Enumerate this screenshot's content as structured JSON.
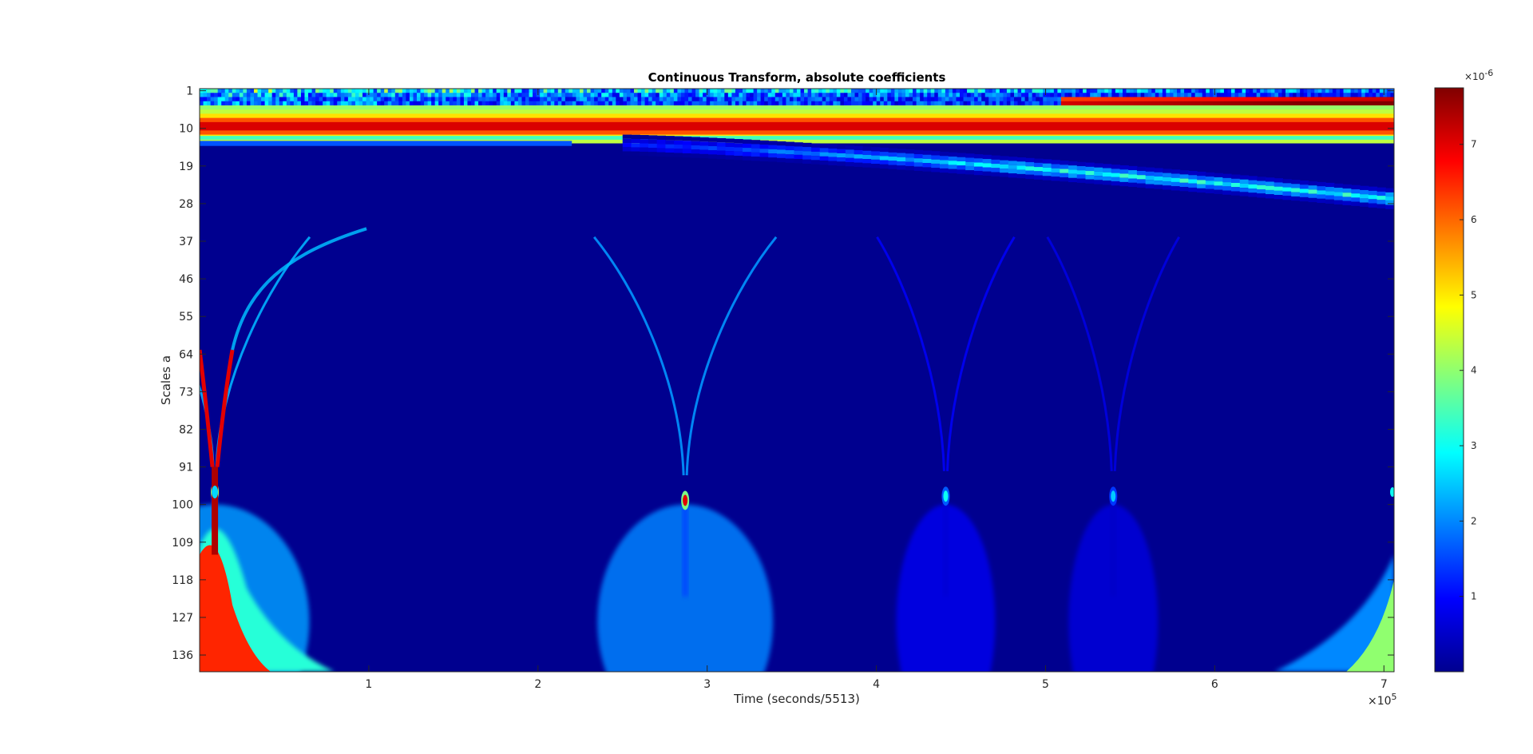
{
  "chart_data": {
    "type": "heatmap",
    "title": "Continuous Transform, absolute coefficients",
    "xlabel": "Time (seconds/5513)",
    "ylabel": "Scales a",
    "x_ticks": [
      1,
      2,
      3,
      4,
      5,
      6,
      7
    ],
    "x_tick_labels": [
      "1",
      "2",
      "3",
      "4",
      "5",
      "6",
      "7"
    ],
    "x_multiplier": "×10",
    "x_multiplier_exp": "5",
    "xlim": [
      0,
      7.06
    ],
    "y_ticks": [
      1,
      10,
      19,
      28,
      37,
      46,
      55,
      64,
      73,
      82,
      91,
      100,
      109,
      118,
      127,
      136
    ],
    "y_tick_labels": [
      "1",
      "10",
      "19",
      "28",
      "37",
      "46",
      "55",
      "64",
      "73",
      "82",
      "91",
      "100",
      "109",
      "118",
      "127",
      "136"
    ],
    "ylim": [
      0.5,
      140
    ],
    "y_reversed": true,
    "colormap": "jet",
    "colorbar": {
      "ticks": [
        1,
        2,
        3,
        4,
        5,
        6,
        7
      ],
      "tick_labels": [
        "1",
        "2",
        "3",
        "4",
        "5",
        "6",
        "7"
      ],
      "clim": [
        0,
        7.75
      ],
      "multiplier": "×10",
      "multiplier_exp": "-6"
    },
    "features": [
      {
        "kind": "band",
        "scale_from": 1,
        "scale_to": 5,
        "t_from": 0,
        "t_to": 7.06,
        "value_start": 3.0,
        "value_end": 1.6
      },
      {
        "kind": "band",
        "scale_from": 5,
        "scale_to": 13,
        "t_from": 0,
        "t_to": 7.06,
        "value_start": 7.2,
        "value_end": 7.2
      },
      {
        "kind": "ridge",
        "scale_start": 14,
        "scale_end": 27,
        "t_from": 2.5,
        "t_to": 7.06,
        "value": 3.0
      },
      {
        "kind": "transient",
        "t": 0.09,
        "scale_focus": 97,
        "value": 7.7
      },
      {
        "kind": "transient",
        "t": 2.87,
        "scale_focus": 99,
        "value": 7.0
      },
      {
        "kind": "transient",
        "t": 4.41,
        "scale_focus": 98,
        "value": 3.0
      },
      {
        "kind": "transient",
        "t": 5.4,
        "scale_focus": 98,
        "value": 2.5
      },
      {
        "kind": "edge",
        "t": 7.06,
        "scale_focus": 140,
        "value": 4.0
      }
    ]
  }
}
